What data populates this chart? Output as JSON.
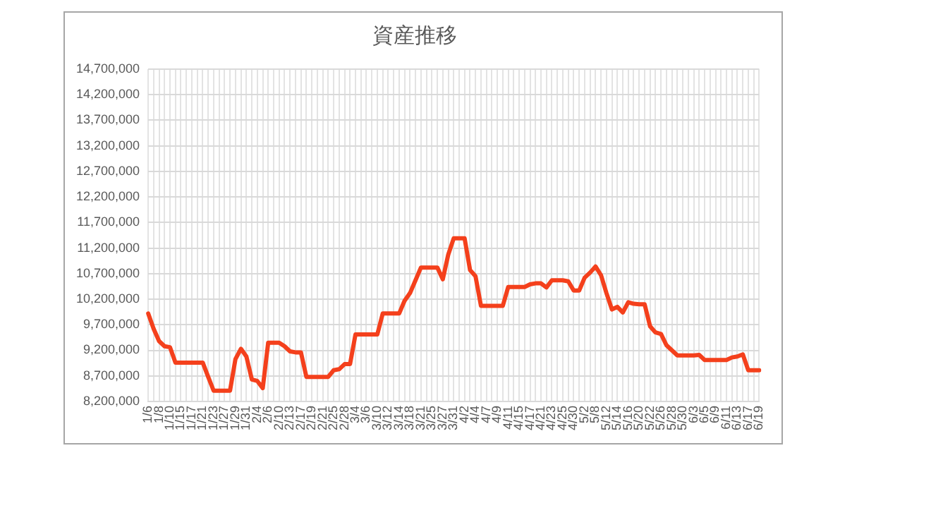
{
  "chart_data": {
    "type": "line",
    "title": "資産推移",
    "categories": [
      "1/6",
      null,
      "1/8",
      null,
      "1/10",
      null,
      "1/15",
      null,
      "1/17",
      null,
      "1/21",
      null,
      "1/23",
      null,
      "1/27",
      null,
      "1/29",
      null,
      "1/31",
      null,
      "2/4",
      null,
      "2/6",
      null,
      "2/10",
      null,
      "2/13",
      null,
      "2/17",
      null,
      "2/19",
      null,
      "2/21",
      null,
      "2/25",
      null,
      "2/28",
      null,
      "3/4",
      null,
      "3/6",
      null,
      "3/10",
      null,
      "3/12",
      null,
      "3/14",
      null,
      "3/18",
      null,
      "3/21",
      null,
      "3/25",
      null,
      "3/27",
      null,
      "3/31",
      null,
      "4/2",
      null,
      "4/4",
      null,
      "4/7",
      null,
      "4/9",
      null,
      "4/11",
      null,
      "4/15",
      null,
      "4/17",
      null,
      "4/21",
      null,
      "4/23",
      null,
      "4/25",
      null,
      "4/30",
      null,
      "5/2",
      null,
      "5/8",
      null,
      "5/12",
      null,
      "5/14",
      null,
      "5/16",
      null,
      "5/20",
      null,
      "5/22",
      null,
      "5/26",
      null,
      "5/28",
      null,
      "5/30",
      null,
      "6/3",
      null,
      "6/5",
      null,
      "6/9",
      null,
      "6/11",
      null,
      "6/13",
      null,
      "6/17",
      null,
      "6/19"
    ],
    "series": [
      {
        "color": "#f4401c",
        "values": [
          9920000,
          9620000,
          9380000,
          9280000,
          9260000,
          8960000,
          8960000,
          8960000,
          8960000,
          8960000,
          8960000,
          8680000,
          8410000,
          8410000,
          8410000,
          8410000,
          9030000,
          9230000,
          9080000,
          8630000,
          8600000,
          8460000,
          9350000,
          9350000,
          9350000,
          9280000,
          9180000,
          9160000,
          9160000,
          8680000,
          8680000,
          8680000,
          8680000,
          8680000,
          8810000,
          8830000,
          8930000,
          8930000,
          9510000,
          9510000,
          9510000,
          9510000,
          9510000,
          9920000,
          9920000,
          9920000,
          9920000,
          10170000,
          10320000,
          10570000,
          10820000,
          10820000,
          10820000,
          10820000,
          10590000,
          11070000,
          11390000,
          11390000,
          11390000,
          10770000,
          10650000,
          10070000,
          10070000,
          10070000,
          10070000,
          10070000,
          10440000,
          10440000,
          10440000,
          10440000,
          10490000,
          10510000,
          10510000,
          10430000,
          10570000,
          10570000,
          10570000,
          10550000,
          10370000,
          10370000,
          10620000,
          10720000,
          10840000,
          10670000,
          10320000,
          10000000,
          10050000,
          9940000,
          10140000,
          10110000,
          10100000,
          10100000,
          9670000,
          9550000,
          9520000,
          9300000,
          9200000,
          9100000,
          9100000,
          9100000,
          9100000,
          9110000,
          9010000,
          9010000,
          9010000,
          9010000,
          9010000,
          9060000,
          9080000,
          9120000,
          8810000,
          8810000,
          8810000
        ]
      }
    ],
    "ylim": [
      8200000,
      14700000
    ],
    "yticks": [
      {
        "value": 8200000,
        "label": "8,200,000"
      },
      {
        "value": 8700000,
        "label": "8,700,000"
      },
      {
        "value": 9200000,
        "label": "9,200,000"
      },
      {
        "value": 9700000,
        "label": "9,700,000"
      },
      {
        "value": 10200000,
        "label": "10,200,000"
      },
      {
        "value": 10700000,
        "label": "10,700,000"
      },
      {
        "value": 11200000,
        "label": "11,200,000"
      },
      {
        "value": 11700000,
        "label": "11,700,000"
      },
      {
        "value": 12200000,
        "label": "12,200,000"
      },
      {
        "value": 12700000,
        "label": "12,700,000"
      },
      {
        "value": 13200000,
        "label": "13,200,000"
      },
      {
        "value": 13700000,
        "label": "13,700,000"
      },
      {
        "value": 14200000,
        "label": "14,200,000"
      },
      {
        "value": 14700000,
        "label": "14,700,000"
      }
    ],
    "grid": true,
    "legend": false,
    "marker": "none",
    "line_style": "solid"
  }
}
